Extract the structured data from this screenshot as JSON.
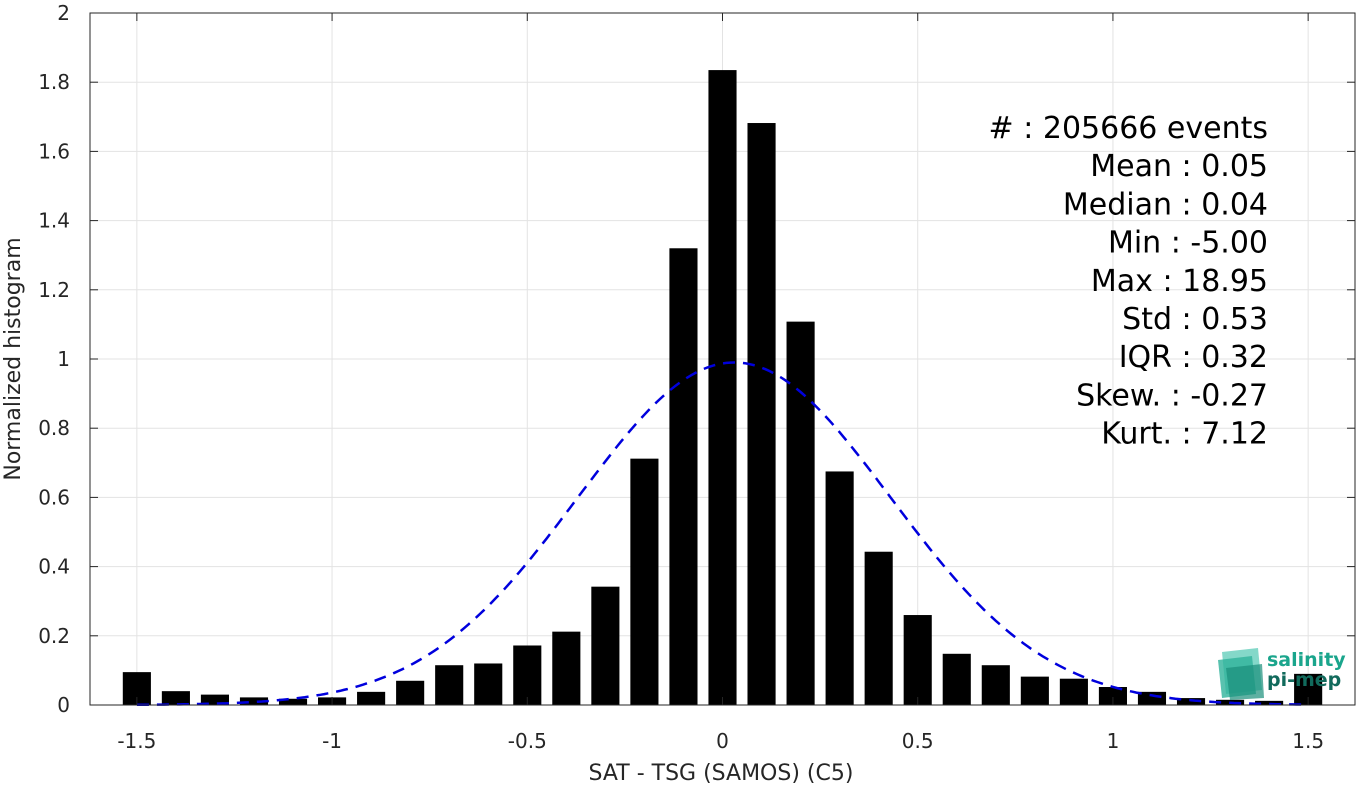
{
  "chart_data": {
    "type": "bar",
    "xlabel": "SAT - TSG (SAMOS) (C5)",
    "ylabel": "Normalized histogram",
    "xlim": [
      -1.62,
      1.62
    ],
    "ylim": [
      0,
      2
    ],
    "xticks": [
      -1.5,
      -1,
      -0.5,
      0,
      0.5,
      1,
      1.5
    ],
    "xtick_labels": [
      "-1.5",
      "-1",
      "-0.5",
      "0",
      "0.5",
      "1",
      "1.5"
    ],
    "yticks": [
      0,
      0.2,
      0.4,
      0.6,
      0.8,
      1,
      1.2,
      1.4,
      1.6,
      1.8,
      2
    ],
    "ytick_labels": [
      "0",
      "0.2",
      "0.4",
      "0.6",
      "0.8",
      "1",
      "1.2",
      "1.4",
      "1.6",
      "1.8",
      "2"
    ],
    "grid": true,
    "bar_color": "#000000",
    "bins": [
      -1.5,
      -1.4,
      -1.3,
      -1.2,
      -1.1,
      -1.0,
      -0.9,
      -0.8,
      -0.7,
      -0.6,
      -0.5,
      -0.4,
      -0.3,
      -0.2,
      -0.1,
      0.0,
      0.1,
      0.2,
      0.3,
      0.4,
      0.5,
      0.6,
      0.7,
      0.8,
      0.9,
      1.0,
      1.1,
      1.2,
      1.3,
      1.4,
      1.5
    ],
    "values": [
      0.095,
      0.04,
      0.03,
      0.022,
      0.018,
      0.022,
      0.038,
      0.07,
      0.115,
      0.12,
      0.172,
      0.212,
      0.342,
      0.712,
      1.32,
      1.835,
      1.682,
      1.108,
      0.675,
      0.443,
      0.26,
      0.148,
      0.115,
      0.082,
      0.076,
      0.052,
      0.038,
      0.02,
      0.015,
      0.012,
      0.09
    ],
    "fit": {
      "type": "gaussian",
      "mean": 0.03,
      "std": 0.4,
      "peak": 0.99,
      "color": "#0000dd",
      "style": "dashed"
    },
    "stats": [
      "#  : 205666 events",
      "Mean : 0.05",
      "Median : 0.04",
      "Min : -5.00",
      "Max : 18.95",
      "Std : 0.53",
      "IQR : 0.32",
      "Skew. : -0.27",
      "Kurt. : 7.12"
    ]
  },
  "logo": {
    "line1": "salinity",
    "line2": "pi-mep",
    "color1": "#1aa58c",
    "color2": "#116a5c"
  }
}
